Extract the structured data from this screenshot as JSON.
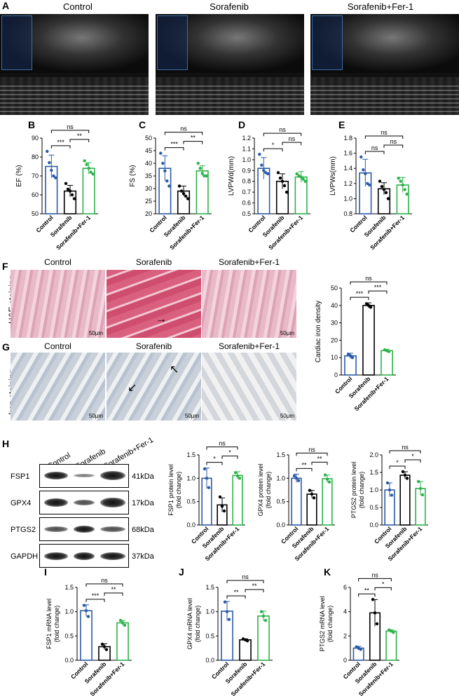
{
  "panel_labels": {
    "A": "A",
    "B": "B",
    "C": "C",
    "D": "D",
    "E": "E",
    "F": "F",
    "G": "G",
    "H": "H",
    "I": "I",
    "J": "J",
    "K": "K"
  },
  "groups": [
    "Control",
    "Sorafenib",
    "Sorafenib+Fer-1"
  ],
  "colors": {
    "control": "#2a5aa8",
    "sorafenib": "#000000",
    "fer1": "#2db24a"
  },
  "panel_a": {
    "titles": [
      "Control",
      "Sorafenib",
      "Sorafenib+Fer-1"
    ]
  },
  "panel_f": {
    "row_label": "H&E staining",
    "titles": [
      "Control",
      "Sorafenib",
      "Sorafenib+Fer-1"
    ],
    "scale": "50μm"
  },
  "panel_g": {
    "row_label": "Iron staining",
    "titles": [
      "Control",
      "Sorafenib",
      "Sorafenib+Fer-1"
    ],
    "scale": "50μm"
  },
  "panel_h": {
    "bands": [
      {
        "name": "FSP1",
        "kda": "41kDa"
      },
      {
        "name": "GPX4",
        "kda": "17kDa"
      },
      {
        "name": "PTGS2",
        "kda": "68kDa"
      },
      {
        "name": "GAPDH",
        "kda": "37kDa"
      }
    ]
  },
  "chart_data": [
    {
      "id": "B",
      "type": "bar",
      "ylabel": "EF (%)",
      "ylim": [
        50,
        90
      ],
      "yticks": [
        50,
        60,
        70,
        80,
        90
      ],
      "categories": [
        "Control",
        "Sorafenib",
        "Sorafenib+Fer-1"
      ],
      "values": [
        75,
        62,
        74
      ],
      "errors": [
        6,
        3,
        3
      ],
      "points": [
        [
          83,
          77,
          73,
          70,
          69
        ],
        [
          66,
          63,
          62,
          60,
          58
        ],
        [
          78,
          76,
          74,
          72,
          71
        ]
      ],
      "sig": [
        {
          "from": 0,
          "to": 1,
          "label": "***"
        },
        {
          "from": 1,
          "to": 2,
          "label": "**"
        },
        {
          "from": 0,
          "to": 2,
          "label": "ns"
        }
      ]
    },
    {
      "id": "C",
      "type": "bar",
      "ylabel": "FS (%)",
      "ylim": [
        20,
        50
      ],
      "yticks": [
        20,
        25,
        30,
        35,
        40,
        45,
        50
      ],
      "categories": [
        "Control",
        "Sorafenib",
        "Sorafenib+Fer-1"
      ],
      "values": [
        38,
        29,
        37
      ],
      "errors": [
        5,
        2,
        2
      ],
      "points": [
        [
          44,
          40,
          37,
          33,
          31
        ],
        [
          31,
          29,
          28,
          27,
          26
        ],
        [
          40,
          38,
          36,
          35,
          35
        ]
      ],
      "sig": [
        {
          "from": 0,
          "to": 1,
          "label": "***"
        },
        {
          "from": 1,
          "to": 2,
          "label": "**"
        },
        {
          "from": 0,
          "to": 2,
          "label": "ns"
        }
      ]
    },
    {
      "id": "D",
      "type": "bar",
      "ylabel": "LVPWd(mm)",
      "ylim": [
        0.5,
        1.2
      ],
      "yticks": [
        0.5,
        0.6,
        0.7,
        0.8,
        0.9,
        1.0,
        1.1,
        1.2
      ],
      "categories": [
        "Control",
        "Sorafenib",
        "Sorafenib+Fer-1"
      ],
      "values": [
        0.92,
        0.8,
        0.84
      ],
      "errors": [
        0.1,
        0.07,
        0.05
      ],
      "points": [
        [
          1.05,
          0.95,
          0.9,
          0.88,
          0.87
        ],
        [
          0.88,
          0.83,
          0.8,
          0.76,
          0.7
        ],
        [
          0.87,
          0.85,
          0.84,
          0.82,
          0.8
        ]
      ],
      "sig": [
        {
          "from": 0,
          "to": 1,
          "label": "*"
        },
        {
          "from": 1,
          "to": 2,
          "label": "ns"
        },
        {
          "from": 0,
          "to": 2,
          "label": "ns"
        }
      ]
    },
    {
      "id": "E",
      "type": "bar",
      "ylabel": "LVPWs(mm)",
      "ylim": [
        0.8,
        1.8
      ],
      "yticks": [
        0.8,
        1.0,
        1.2,
        1.4,
        1.6,
        1.8
      ],
      "categories": [
        "Control",
        "Sorafenib",
        "Sorafenib+Fer-1"
      ],
      "values": [
        1.34,
        1.13,
        1.18
      ],
      "errors": [
        0.18,
        0.08,
        0.1
      ],
      "points": [
        [
          1.55,
          1.38,
          1.33,
          1.2,
          1.18
        ],
        [
          1.23,
          1.16,
          1.12,
          1.08,
          1.0
        ],
        [
          1.27,
          1.23,
          1.18,
          1.12,
          1.06
        ]
      ],
      "sig": [
        {
          "from": 0,
          "to": 1,
          "label": "ns"
        },
        {
          "from": 1,
          "to": 2,
          "label": "ns"
        },
        {
          "from": 0,
          "to": 2,
          "label": "ns"
        }
      ]
    },
    {
      "id": "F",
      "type": "bar",
      "ylabel": "Cardiac iron density",
      "ylim": [
        0,
        50
      ],
      "yticks": [
        0,
        10,
        20,
        30,
        40,
        50
      ],
      "categories": [
        "Control",
        "Sorafenib",
        "Sorafenib+Fer-1"
      ],
      "values": [
        11,
        40,
        14
      ],
      "errors": [
        1.5,
        1.5,
        0.8
      ],
      "points": [
        [
          12,
          11,
          10
        ],
        [
          41,
          40,
          39
        ],
        [
          14.5,
          14,
          13.5
        ]
      ],
      "sig": [
        {
          "from": 0,
          "to": 1,
          "label": "***"
        },
        {
          "from": 1,
          "to": 2,
          "label": "***"
        },
        {
          "from": 0,
          "to": 2,
          "label": "ns"
        }
      ]
    },
    {
      "id": "H1",
      "type": "bar",
      "ylabel": "FSP1 protein level (fold change)",
      "ylim": [
        0,
        1.5
      ],
      "yticks": [
        0.0,
        0.5,
        1.0,
        1.5
      ],
      "categories": [
        "Control",
        "Sorafenib",
        "Sorafenib+Fer-1"
      ],
      "values": [
        1.0,
        0.43,
        1.06
      ],
      "errors": [
        0.22,
        0.15,
        0.08
      ],
      "points": [
        [
          1.2,
          1.0,
          0.8
        ],
        [
          0.6,
          0.4,
          0.3
        ],
        [
          1.12,
          1.05,
          1.0
        ]
      ],
      "sig": [
        {
          "from": 0,
          "to": 1,
          "label": "*"
        },
        {
          "from": 1,
          "to": 2,
          "label": "*"
        },
        {
          "from": 0,
          "to": 2,
          "label": "ns"
        }
      ]
    },
    {
      "id": "H2",
      "type": "bar",
      "ylabel": "GPX4 protein level (fold change)",
      "ylim": [
        0,
        1.5
      ],
      "yticks": [
        0.0,
        0.5,
        1.0,
        1.5
      ],
      "categories": [
        "Control",
        "Sorafenib",
        "Sorafenib+Fer-1"
      ],
      "values": [
        1.0,
        0.66,
        0.99
      ],
      "errors": [
        0.09,
        0.08,
        0.08
      ],
      "points": [
        [
          1.05,
          1.0,
          0.95
        ],
        [
          0.74,
          0.66,
          0.58
        ],
        [
          1.07,
          0.98,
          0.92
        ]
      ],
      "sig": [
        {
          "from": 0,
          "to": 1,
          "label": "**"
        },
        {
          "from": 1,
          "to": 2,
          "label": "**"
        },
        {
          "from": 0,
          "to": 2,
          "label": "ns"
        }
      ]
    },
    {
      "id": "H3",
      "type": "bar",
      "ylabel": "PTGS2 protein level (fold change)",
      "ylim": [
        0,
        2.0
      ],
      "yticks": [
        0.0,
        0.5,
        1.0,
        1.5,
        2.0
      ],
      "categories": [
        "Control",
        "Sorafenib",
        "Sorafenib+Fer-1"
      ],
      "values": [
        1.0,
        1.42,
        1.04
      ],
      "errors": [
        0.2,
        0.1,
        0.2
      ],
      "points": [
        [
          1.2,
          1.0,
          0.85
        ],
        [
          1.52,
          1.42,
          1.33
        ],
        [
          1.24,
          1.04,
          0.86
        ]
      ],
      "sig": [
        {
          "from": 0,
          "to": 1,
          "label": "*"
        },
        {
          "from": 1,
          "to": 2,
          "label": "*"
        },
        {
          "from": 0,
          "to": 2,
          "label": "ns"
        }
      ]
    },
    {
      "id": "I",
      "type": "bar",
      "ylabel": "FSP1 mRNA level (fold change)",
      "ylim": [
        0,
        1.5
      ],
      "yticks": [
        0.0,
        0.5,
        1.0,
        1.5
      ],
      "categories": [
        "Control",
        "Sorafenib",
        "Sorafenib+Fer-1"
      ],
      "values": [
        1.02,
        0.28,
        0.77
      ],
      "errors": [
        0.12,
        0.06,
        0.05
      ],
      "points": [
        [
          1.13,
          1.02,
          0.9
        ],
        [
          0.33,
          0.28,
          0.22
        ],
        [
          0.82,
          0.77,
          0.72
        ]
      ],
      "sig": [
        {
          "from": 0,
          "to": 1,
          "label": "***"
        },
        {
          "from": 1,
          "to": 2,
          "label": "**"
        },
        {
          "from": 0,
          "to": 2,
          "label": "ns"
        }
      ]
    },
    {
      "id": "J",
      "type": "bar",
      "ylabel": "GPX4 mRNA level (fold change)",
      "ylim": [
        0,
        1.5
      ],
      "yticks": [
        0.0,
        0.5,
        1.0,
        1.5
      ],
      "categories": [
        "Control",
        "Sorafenib",
        "Sorafenib+Fer-1"
      ],
      "values": [
        1.01,
        0.42,
        0.91
      ],
      "errors": [
        0.2,
        0.02,
        0.1
      ],
      "points": [
        [
          1.2,
          1.0,
          0.84
        ],
        [
          0.44,
          0.42,
          0.4
        ],
        [
          1.0,
          0.91,
          0.82
        ]
      ],
      "sig": [
        {
          "from": 0,
          "to": 1,
          "label": "**"
        },
        {
          "from": 1,
          "to": 2,
          "label": "**"
        },
        {
          "from": 0,
          "to": 2,
          "label": "ns"
        }
      ]
    },
    {
      "id": "K",
      "type": "bar",
      "ylabel": "PTGS2 mRNA level (fold change)",
      "ylim": [
        0,
        6
      ],
      "yticks": [
        0,
        2,
        4,
        6
      ],
      "categories": [
        "Control",
        "Sorafenib",
        "Sorafenib+Fer-1"
      ],
      "values": [
        1.0,
        3.9,
        2.4
      ],
      "errors": [
        0.15,
        1.1,
        0.1
      ],
      "points": [
        [
          1.1,
          1.0,
          0.9
        ],
        [
          5.0,
          3.9,
          3.0
        ],
        [
          2.5,
          2.4,
          2.3
        ]
      ],
      "sig": [
        {
          "from": 0,
          "to": 1,
          "label": "**"
        },
        {
          "from": 1,
          "to": 2,
          "label": "*"
        },
        {
          "from": 0,
          "to": 2,
          "label": "ns"
        }
      ]
    }
  ]
}
